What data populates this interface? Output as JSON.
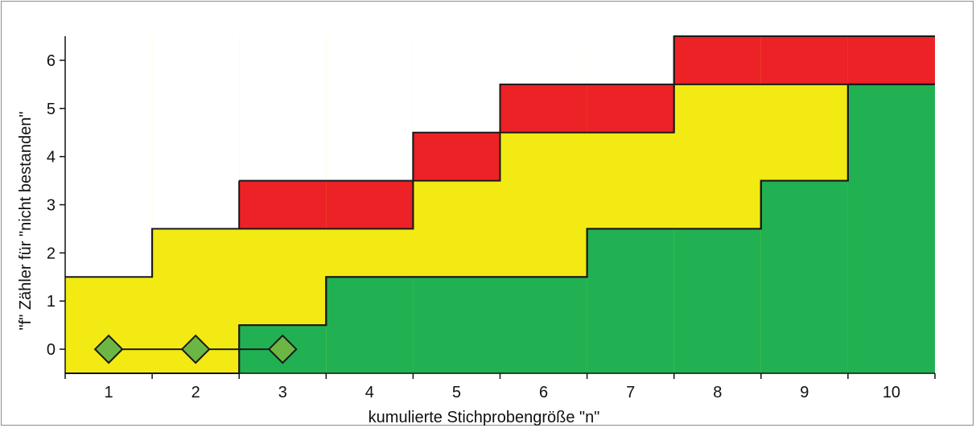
{
  "chart_data": {
    "type": "area",
    "xlabel": "kumulierte Stichprobengröße \"n\"",
    "ylabel": "\"f\" Zähler für \"nicht bestanden\"",
    "x_categories": [
      "1",
      "2",
      "3",
      "4",
      "5",
      "6",
      "7",
      "8",
      "9",
      "10"
    ],
    "y_ticks": [
      "0",
      "1",
      "2",
      "3",
      "4",
      "5",
      "6"
    ],
    "xlim": [
      0.5,
      10.5
    ],
    "ylim": [
      -0.5,
      6.5
    ],
    "zones": {
      "accept_upper": [
        -0.5,
        -0.5,
        0.5,
        1.5,
        1.5,
        1.5,
        2.5,
        2.5,
        3.5,
        5.5
      ],
      "reject_lower": [
        null,
        null,
        2.5,
        2.5,
        3.5,
        4.5,
        4.5,
        5.5,
        5.5,
        5.5
      ]
    },
    "colors": {
      "accept": "#22b152",
      "continue": "#f2ea12",
      "reject": "#ec2227",
      "marker": "#6cb744"
    },
    "series": [
      {
        "x": [
          1,
          2,
          3
        ],
        "y": [
          0,
          0,
          0
        ]
      }
    ]
  }
}
